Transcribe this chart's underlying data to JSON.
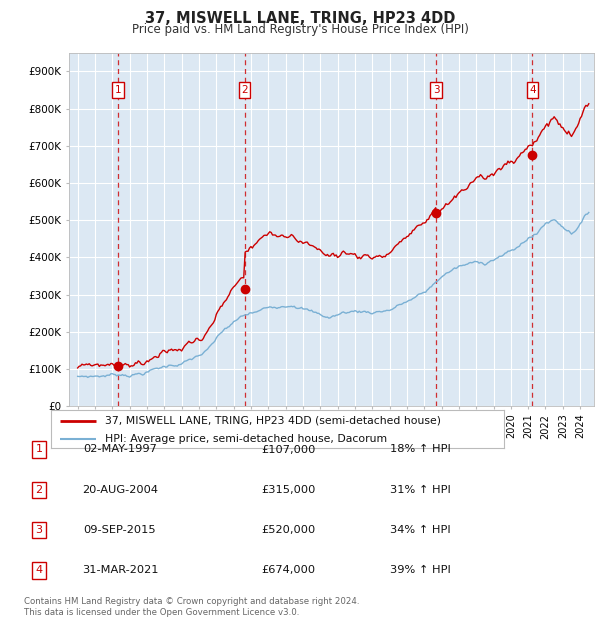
{
  "title": "37, MISWELL LANE, TRING, HP23 4DD",
  "subtitle": "Price paid vs. HM Land Registry's House Price Index (HPI)",
  "plot_bg_color": "#dce8f3",
  "red_line_color": "#cc0000",
  "blue_line_color": "#7ab0d4",
  "ylim": [
    0,
    950000
  ],
  "yticks": [
    0,
    100000,
    200000,
    300000,
    400000,
    500000,
    600000,
    700000,
    800000,
    900000
  ],
  "ytick_labels": [
    "£0",
    "£100K",
    "£200K",
    "£300K",
    "£400K",
    "£500K",
    "£600K",
    "£700K",
    "£800K",
    "£900K"
  ],
  "xlim_start": 1994.5,
  "xlim_end": 2024.8,
  "sale_dates": [
    1997.33,
    2004.63,
    2015.69,
    2021.25
  ],
  "sale_prices": [
    107000,
    315000,
    520000,
    674000
  ],
  "legend_label_red": "37, MISWELL LANE, TRING, HP23 4DD (semi-detached house)",
  "legend_label_blue": "HPI: Average price, semi-detached house, Dacorum",
  "table_entries": [
    {
      "num": "1",
      "date": "02-MAY-1997",
      "price": "£107,000",
      "hpi": "18% ↑ HPI"
    },
    {
      "num": "2",
      "date": "20-AUG-2004",
      "price": "£315,000",
      "hpi": "31% ↑ HPI"
    },
    {
      "num": "3",
      "date": "09-SEP-2015",
      "price": "£520,000",
      "hpi": "34% ↑ HPI"
    },
    {
      "num": "4",
      "date": "31-MAR-2021",
      "price": "£674,000",
      "hpi": "39% ↑ HPI"
    }
  ],
  "footer": "Contains HM Land Registry data © Crown copyright and database right 2024.\nThis data is licensed under the Open Government Licence v3.0."
}
